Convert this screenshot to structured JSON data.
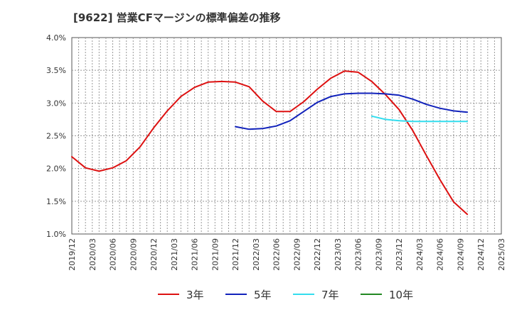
{
  "title": "[9622]  営業CFマージンの標準偏差の推移",
  "chart_data": {
    "type": "line",
    "y_ticks": [
      "4.0%",
      "3.5%",
      "3.0%",
      "2.5%",
      "2.0%",
      "1.5%",
      "1.0%"
    ],
    "x_ticks": [
      "2019/12",
      "2020/03",
      "2020/06",
      "2020/09",
      "2020/12",
      "2021/03",
      "2021/06",
      "2021/09",
      "2021/12",
      "2022/03",
      "2022/06",
      "2022/09",
      "2022/12",
      "2023/03",
      "2023/06",
      "2023/09",
      "2023/12",
      "2024/03",
      "2024/06",
      "2024/09",
      "2024/12",
      "2025/03"
    ],
    "ylim": [
      1.0,
      4.0
    ],
    "grid": true,
    "legend_position": "bottom",
    "series": [
      {
        "name": "3年",
        "color": "#dd1111",
        "values": [
          2.18,
          2.01,
          1.96,
          2.01,
          2.12,
          2.33,
          2.62,
          2.88,
          3.1,
          3.24,
          3.32,
          3.33,
          3.32,
          3.25,
          3.03,
          2.87,
          2.87,
          3.02,
          3.21,
          3.38,
          3.49,
          3.47,
          3.33,
          3.13,
          2.9,
          2.58,
          2.2,
          1.83,
          1.49,
          1.3
        ]
      },
      {
        "name": "5年",
        "color": "#1122bb",
        "values": [
          null,
          null,
          null,
          null,
          null,
          null,
          null,
          null,
          null,
          null,
          null,
          null,
          2.64,
          2.6,
          2.61,
          2.65,
          2.73,
          2.87,
          3.01,
          3.1,
          3.14,
          3.15,
          3.15,
          3.14,
          3.12,
          3.06,
          2.98,
          2.92,
          2.88,
          2.86
        ]
      },
      {
        "name": "7年",
        "color": "#33ddee",
        "values": [
          null,
          null,
          null,
          null,
          null,
          null,
          null,
          null,
          null,
          null,
          null,
          null,
          null,
          null,
          null,
          null,
          null,
          null,
          null,
          null,
          null,
          null,
          2.8,
          2.75,
          2.73,
          2.72,
          2.72,
          2.72,
          2.72,
          2.72
        ]
      },
      {
        "name": "10年",
        "color": "#228822",
        "values": []
      }
    ]
  }
}
